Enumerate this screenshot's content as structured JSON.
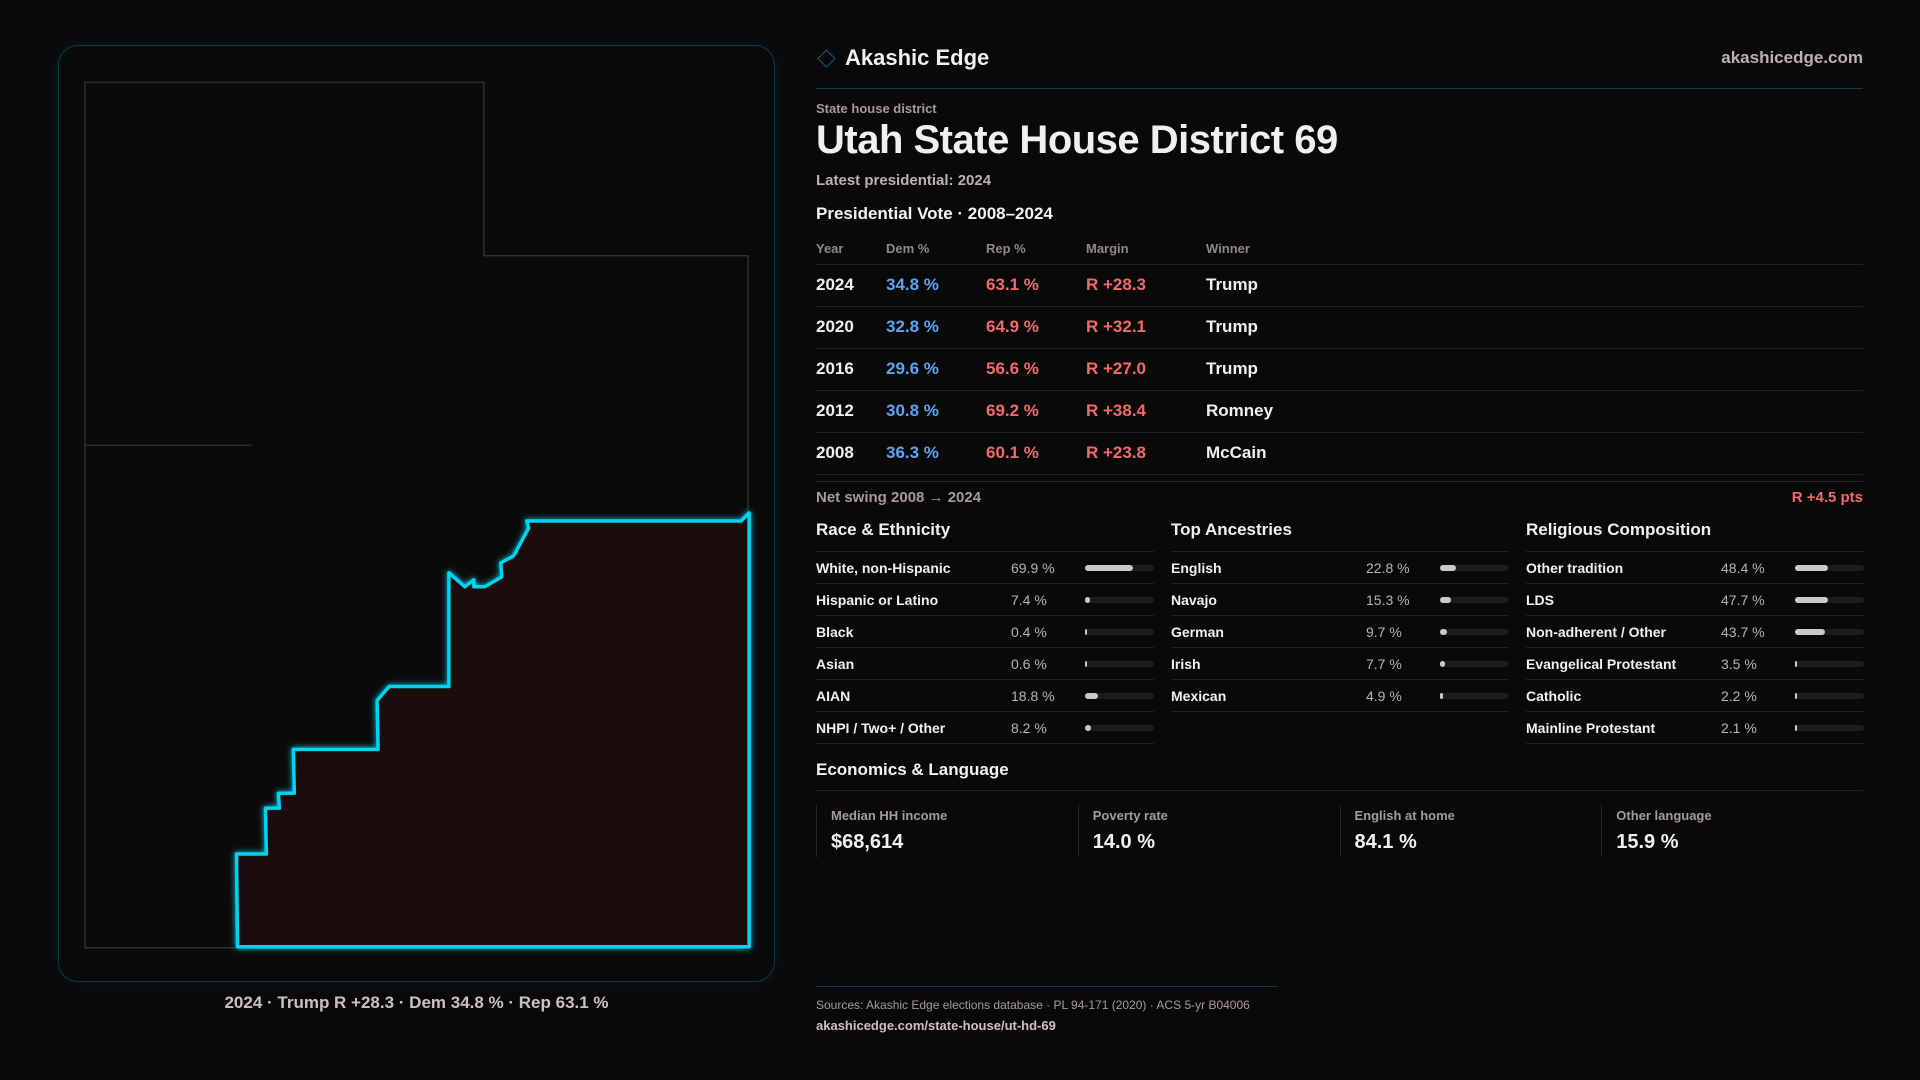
{
  "brand": {
    "name": "Akashic Edge",
    "site": "akashicedge.com"
  },
  "header": {
    "kicker": "State house district",
    "title": "Utah State House District 69",
    "latest": "Latest presidential: 2024"
  },
  "presidential": {
    "title": "Presidential Vote · 2008–2024",
    "columns": [
      "Year",
      "Dem %",
      "Rep %",
      "Margin",
      "Winner"
    ],
    "rows": [
      {
        "year": "2024",
        "dem": "34.8 %",
        "rep": "63.1 %",
        "margin": "R +28.3",
        "winner": "Trump"
      },
      {
        "year": "2020",
        "dem": "32.8 %",
        "rep": "64.9 %",
        "margin": "R +32.1",
        "winner": "Trump"
      },
      {
        "year": "2016",
        "dem": "29.6 %",
        "rep": "56.6 %",
        "margin": "R +27.0",
        "winner": "Trump"
      },
      {
        "year": "2012",
        "dem": "30.8 %",
        "rep": "69.2 %",
        "margin": "R +38.4",
        "winner": "Romney"
      },
      {
        "year": "2008",
        "dem": "36.3 %",
        "rep": "60.1 %",
        "margin": "R +23.8",
        "winner": "McCain"
      }
    ],
    "swing_label": "Net swing 2008 → 2024",
    "swing_value": "R +4.5 pts"
  },
  "demographics": [
    {
      "title": "Race & Ethnicity",
      "items": [
        {
          "label": "White, non-Hispanic",
          "value": "69.9 %",
          "pct": 69.9
        },
        {
          "label": "Hispanic or Latino",
          "value": "7.4 %",
          "pct": 7.4
        },
        {
          "label": "Black",
          "value": "0.4 %",
          "pct": 0.4
        },
        {
          "label": "Asian",
          "value": "0.6 %",
          "pct": 0.6
        },
        {
          "label": "AIAN",
          "value": "18.8 %",
          "pct": 18.8
        },
        {
          "label": "NHPI / Two+ / Other",
          "value": "8.2 %",
          "pct": 8.2
        }
      ]
    },
    {
      "title": "Top Ancestries",
      "items": [
        {
          "label": "English",
          "value": "22.8 %",
          "pct": 22.8
        },
        {
          "label": "Navajo",
          "value": "15.3 %",
          "pct": 15.3
        },
        {
          "label": "German",
          "value": "9.7 %",
          "pct": 9.7
        },
        {
          "label": "Irish",
          "value": "7.7 %",
          "pct": 7.7
        },
        {
          "label": "Mexican",
          "value": "4.9 %",
          "pct": 4.9
        }
      ]
    },
    {
      "title": "Religious Composition",
      "items": [
        {
          "label": "Other tradition",
          "value": "48.4 %",
          "pct": 48.4
        },
        {
          "label": "LDS",
          "value": "47.7 %",
          "pct": 47.7
        },
        {
          "label": "Non-adherent / Other",
          "value": "43.7 %",
          "pct": 43.7
        },
        {
          "label": "Evangelical Protestant",
          "value": "3.5 %",
          "pct": 3.5
        },
        {
          "label": "Catholic",
          "value": "2.2 %",
          "pct": 2.2
        },
        {
          "label": "Mainline Protestant",
          "value": "2.1 %",
          "pct": 2.1
        }
      ]
    }
  ],
  "economics": {
    "title": "Economics & Language",
    "cards": [
      {
        "label": "Median HH income",
        "value": "$68,614"
      },
      {
        "label": "Poverty rate",
        "value": "14.0 %"
      },
      {
        "label": "English at home",
        "value": "84.1 %"
      },
      {
        "label": "Other language",
        "value": "15.9 %"
      }
    ]
  },
  "map": {
    "caption": "2024 · Trump R +28.3 · Dem 34.8 % · Rep 63.1 %",
    "accent": "#00d4f0",
    "fill": "#1e1011"
  },
  "footer": {
    "sources": "Sources: Akashic Edge elections database · PL 94-171 (2020) · ACS 5-yr B04006",
    "url": "akashicedge.com/state-house/ut-hd-69"
  }
}
